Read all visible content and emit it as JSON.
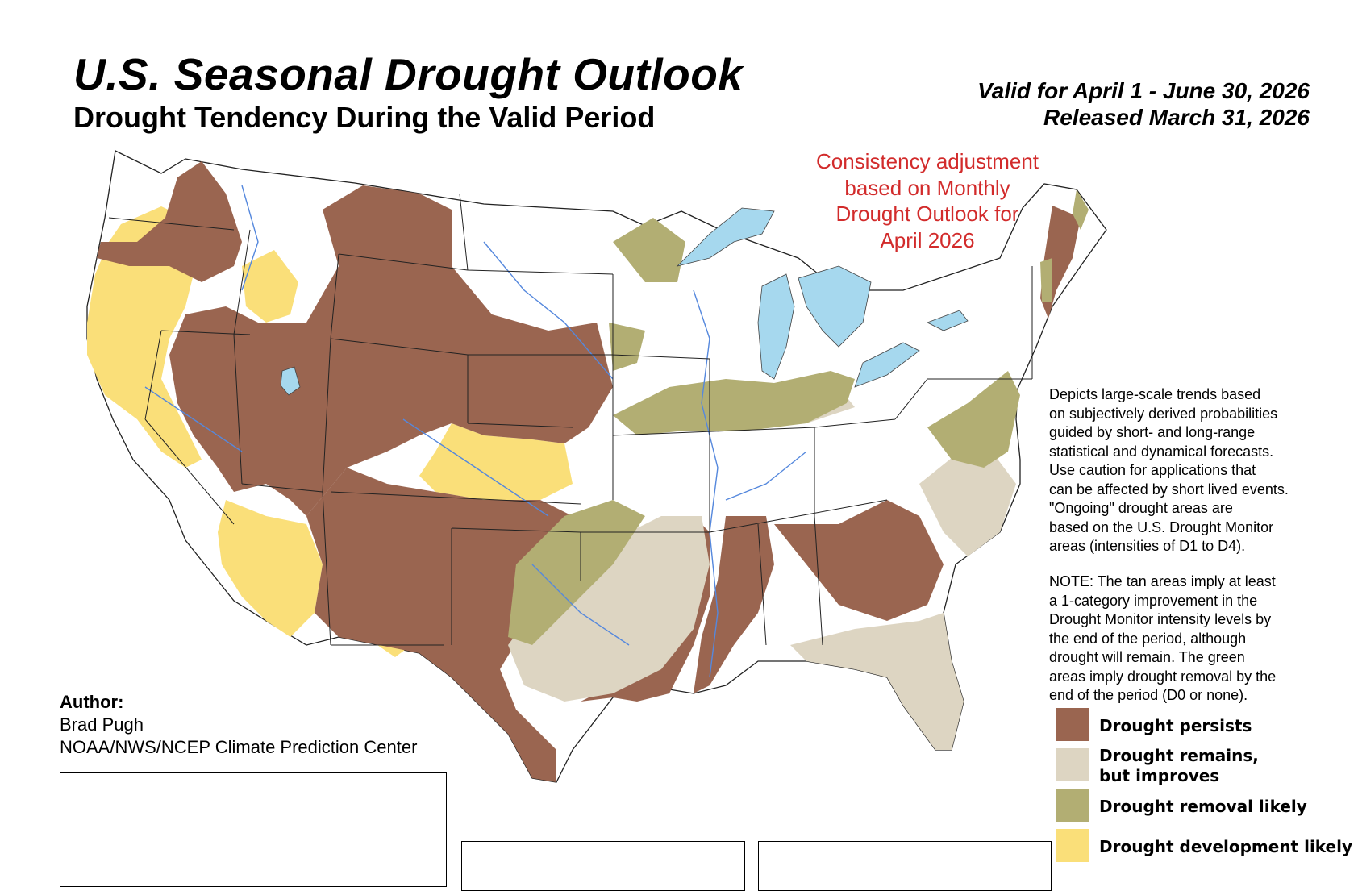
{
  "header": {
    "title": "U.S. Seasonal Drought Outlook",
    "subtitle": "Drought Tendency During the Valid Period",
    "valid_line": "Valid for April 1 - June 30, 2026",
    "released_line": "Released March 31, 2026"
  },
  "map": {
    "consistency_note": [
      "Consistency adjustment",
      "based on Monthly",
      "Drought Outlook for",
      "April 2026"
    ],
    "colors": {
      "persists": "#9a6550",
      "improves": "#ddd5c2",
      "removal": "#b2ae73",
      "development": "#fadf79",
      "water": "#a6d8ee",
      "rivers": "#5588dd"
    }
  },
  "description": [
    "Depicts large-scale trends based",
    "on subjectively derived probabilities",
    "guided by short- and long-range",
    "statistical and dynamical forecasts.",
    "Use caution for applications that",
    "can be affected by short lived events.",
    "\"Ongoing\" drought areas are",
    "based on the U.S. Drought Monitor",
    "areas (intensities of D1 to D4)."
  ],
  "note": [
    "NOTE: The tan areas imply at least",
    "a 1-category improvement in the",
    "Drought Monitor intensity levels by",
    "the end of the period, although",
    "drought will remain. The green",
    "areas imply drought removal by the",
    "end of the period (D0 or none)."
  ],
  "legend": [
    {
      "label_lines": [
        "Drought persists"
      ],
      "color": "#9a6550"
    },
    {
      "label_lines": [
        "Drought remains,",
        "but improves"
      ],
      "color": "#ddd5c2"
    },
    {
      "label_lines": [
        "Drought removal likely"
      ],
      "color": "#b2ae73"
    },
    {
      "label_lines": [
        "Drought development likely"
      ],
      "color": "#fadf79"
    }
  ],
  "author": {
    "label": "Author:",
    "name": "Brad Pugh",
    "org": "NOAA/NWS/NCEP Climate Prediction Center"
  }
}
